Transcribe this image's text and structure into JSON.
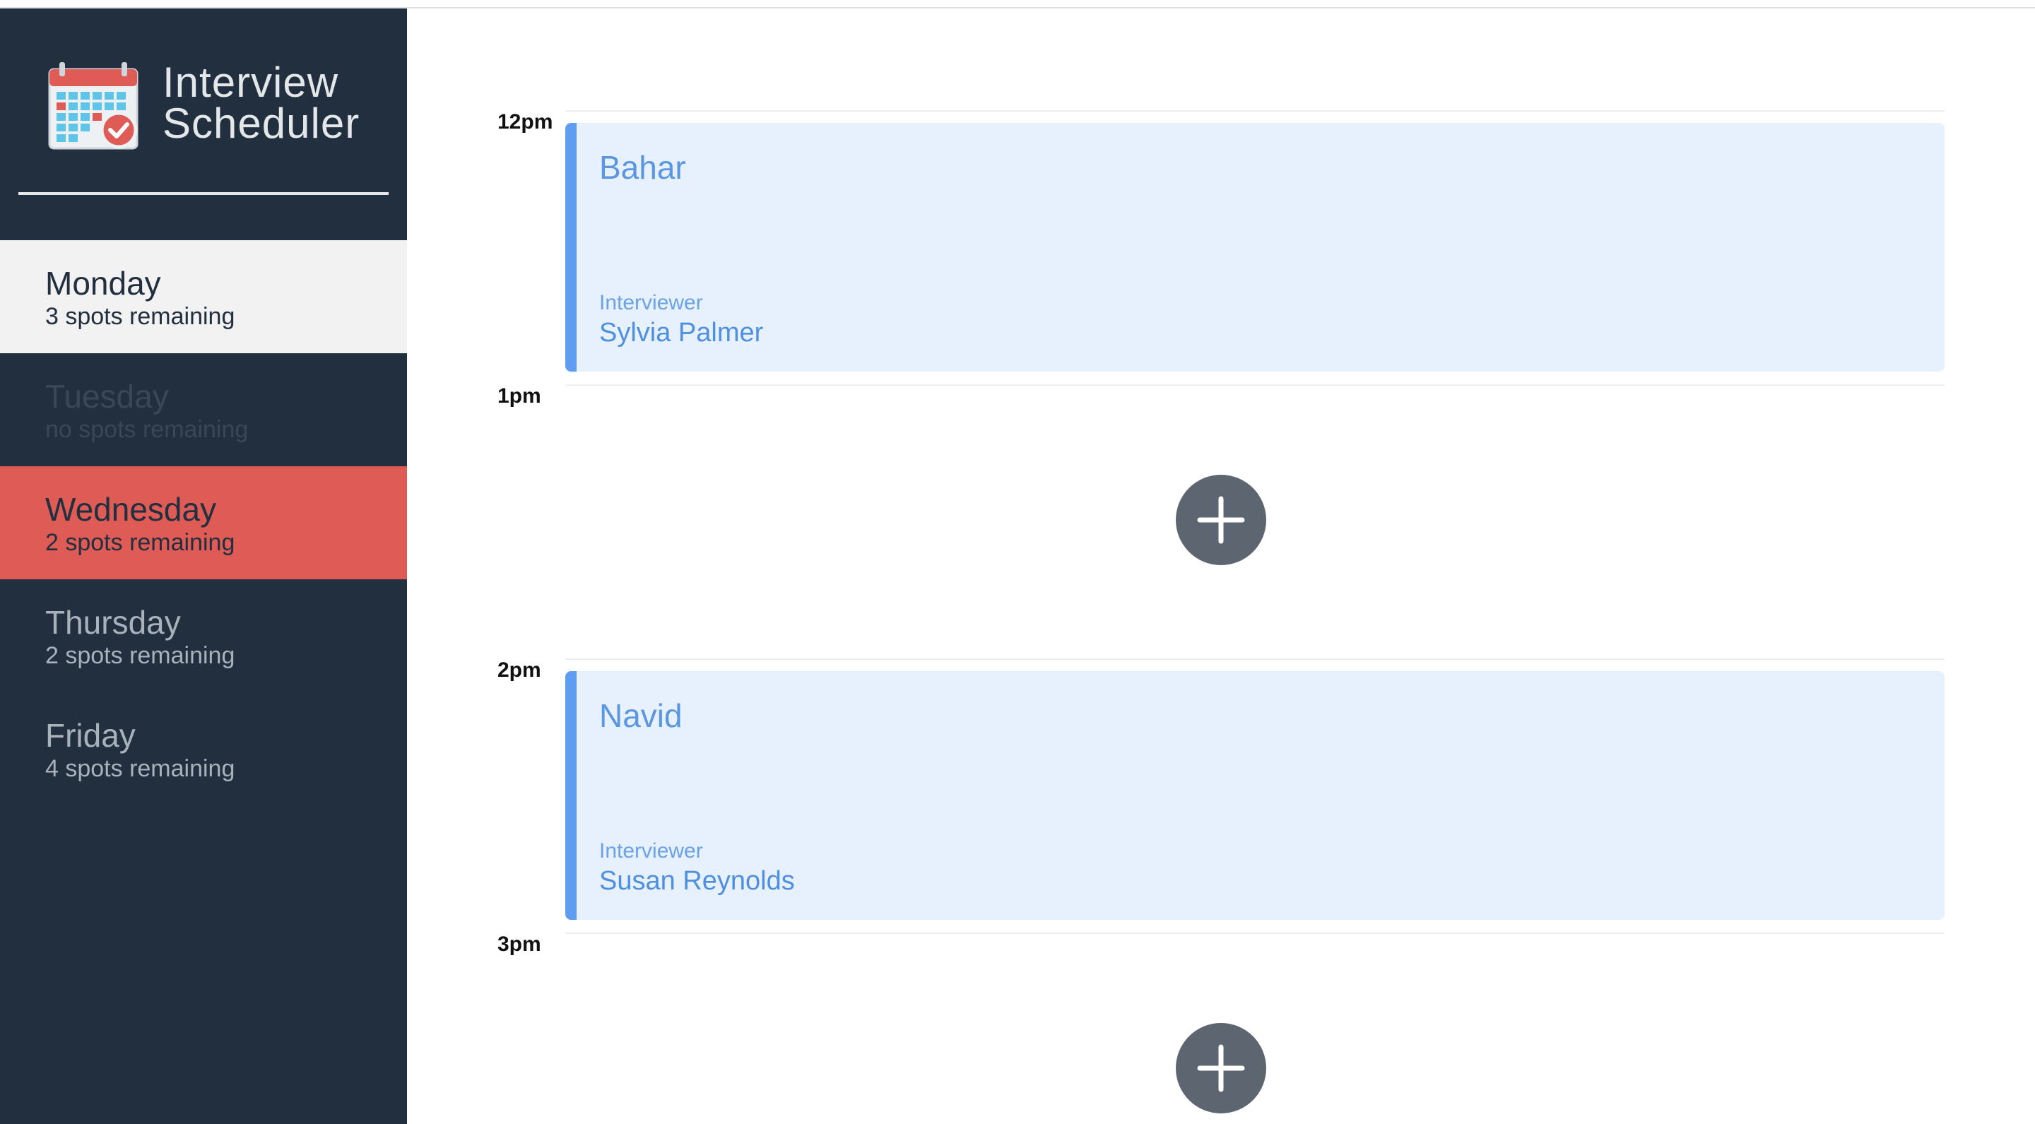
{
  "app": {
    "title_line1": "Interview",
    "title_line2": "Scheduler"
  },
  "days": [
    {
      "name": "Monday",
      "spots": "3 spots remaining"
    },
    {
      "name": "Tuesday",
      "spots": "no spots remaining"
    },
    {
      "name": "Wednesday",
      "spots": "2 spots remaining"
    },
    {
      "name": "Thursday",
      "spots": "2 spots remaining"
    },
    {
      "name": "Friday",
      "spots": "4 spots remaining"
    }
  ],
  "schedule": [
    {
      "time": "12pm",
      "student": "Bahar",
      "interviewer_label": "Interviewer",
      "interviewer": "Sylvia Palmer"
    },
    {
      "time": "1pm"
    },
    {
      "time": "2pm",
      "student": "Navid",
      "interviewer_label": "Interviewer",
      "interviewer": "Susan Reynolds"
    },
    {
      "time": "3pm"
    }
  ],
  "colors": {
    "sidebar_bg": "#222f3e",
    "selected_day_bg": "#f2f2f2",
    "highlight_day_bg": "#df5b55",
    "appointment_bg": "#e7f1fd",
    "appointment_accent": "#5f9df0",
    "add_button_bg": "#5d6570"
  },
  "icons": {
    "logo": "calendar-check-icon",
    "add": "plus-icon"
  }
}
